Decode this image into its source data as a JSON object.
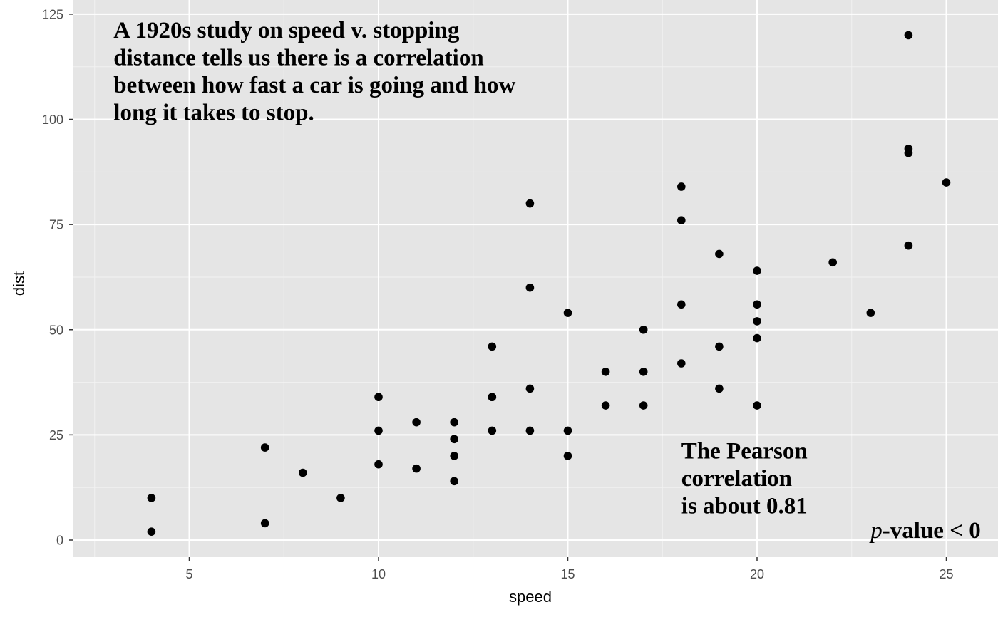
{
  "chart_data": {
    "type": "scatter",
    "xlabel": "speed",
    "ylabel": "dist",
    "xlim": [
      2.5,
      26
    ],
    "ylim": [
      -4,
      126
    ],
    "x_ticks": [
      5,
      10,
      15,
      20,
      25
    ],
    "y_ticks": [
      0,
      25,
      50,
      75,
      100,
      125
    ],
    "x_tick_labels": [
      "5",
      "10",
      "15",
      "20",
      "25"
    ],
    "y_tick_labels": [
      "0",
      "25",
      "50",
      "75",
      "100",
      "125"
    ],
    "grid": true,
    "background": "#e5e5e5",
    "point_color": "#000000",
    "points": [
      {
        "x": 4,
        "y": 2
      },
      {
        "x": 4,
        "y": 10
      },
      {
        "x": 7,
        "y": 4
      },
      {
        "x": 7,
        "y": 22
      },
      {
        "x": 8,
        "y": 16
      },
      {
        "x": 9,
        "y": 10
      },
      {
        "x": 10,
        "y": 18
      },
      {
        "x": 10,
        "y": 26
      },
      {
        "x": 10,
        "y": 34
      },
      {
        "x": 11,
        "y": 17
      },
      {
        "x": 11,
        "y": 28
      },
      {
        "x": 12,
        "y": 14
      },
      {
        "x": 12,
        "y": 20
      },
      {
        "x": 12,
        "y": 24
      },
      {
        "x": 12,
        "y": 28
      },
      {
        "x": 13,
        "y": 26
      },
      {
        "x": 13,
        "y": 34
      },
      {
        "x": 13,
        "y": 34
      },
      {
        "x": 13,
        "y": 46
      },
      {
        "x": 14,
        "y": 26
      },
      {
        "x": 14,
        "y": 36
      },
      {
        "x": 14,
        "y": 60
      },
      {
        "x": 14,
        "y": 80
      },
      {
        "x": 15,
        "y": 20
      },
      {
        "x": 15,
        "y": 26
      },
      {
        "x": 15,
        "y": 54
      },
      {
        "x": 16,
        "y": 32
      },
      {
        "x": 16,
        "y": 40
      },
      {
        "x": 17,
        "y": 32
      },
      {
        "x": 17,
        "y": 40
      },
      {
        "x": 17,
        "y": 50
      },
      {
        "x": 18,
        "y": 42
      },
      {
        "x": 18,
        "y": 56
      },
      {
        "x": 18,
        "y": 76
      },
      {
        "x": 18,
        "y": 84
      },
      {
        "x": 19,
        "y": 36
      },
      {
        "x": 19,
        "y": 46
      },
      {
        "x": 19,
        "y": 68
      },
      {
        "x": 20,
        "y": 32
      },
      {
        "x": 20,
        "y": 48
      },
      {
        "x": 20,
        "y": 52
      },
      {
        "x": 20,
        "y": 56
      },
      {
        "x": 20,
        "y": 64
      },
      {
        "x": 22,
        "y": 66
      },
      {
        "x": 23,
        "y": 54
      },
      {
        "x": 24,
        "y": 70
      },
      {
        "x": 24,
        "y": 92
      },
      {
        "x": 24,
        "y": 93
      },
      {
        "x": 24,
        "y": 120
      },
      {
        "x": 25,
        "y": 85
      }
    ],
    "annotations": [
      {
        "lines": [
          "A 1920s study on speed v. stopping",
          "distance tells us there is a correlation",
          "between how fast a car is going and how",
          "long it takes to stop."
        ],
        "x": 3,
        "y": 125,
        "anchor": "top-left"
      },
      {
        "lines": [
          "The Pearson",
          "correlation",
          "is about 0.81"
        ],
        "x": 18,
        "y": 25,
        "anchor": "top-left"
      },
      {
        "italic_part": "p",
        "text": "-value < 0",
        "x": 23,
        "y": 0,
        "anchor": "bottom-left"
      }
    ]
  }
}
